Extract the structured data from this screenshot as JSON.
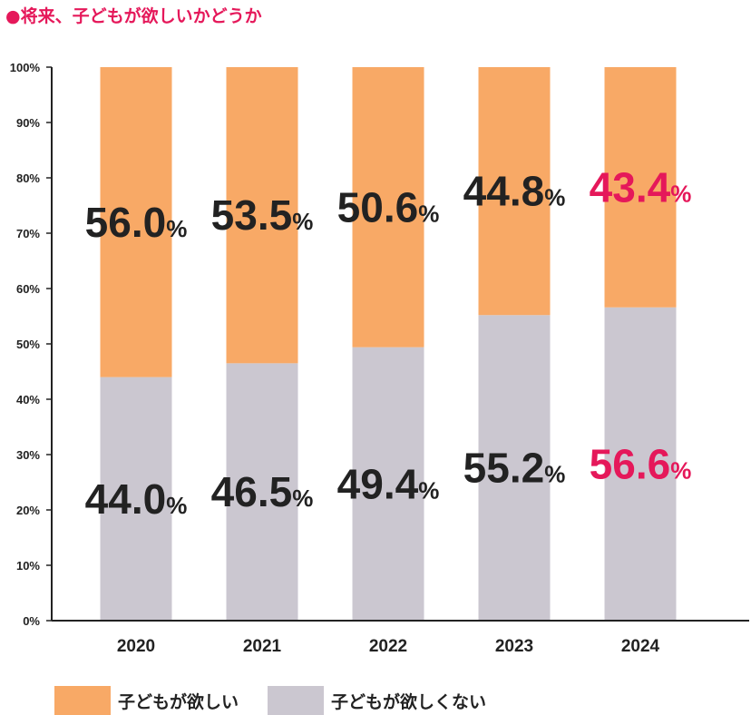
{
  "title": "●将来、子どもが欲しいかどうか",
  "colors": {
    "accent": "#e5185a",
    "want": "#f8a966",
    "not_want": "#cbc7d0",
    "text": "#222222"
  },
  "chart_data": {
    "type": "bar",
    "stacked": true,
    "title": "将来、子どもが欲しいかどうか",
    "categories": [
      "2020",
      "2021",
      "2022",
      "2023",
      "2024"
    ],
    "ylim": [
      0,
      100
    ],
    "yticks": [
      "0%",
      "10%",
      "20%",
      "30%",
      "40%",
      "50%",
      "60%",
      "70%",
      "80%",
      "90%",
      "100%"
    ],
    "series": [
      {
        "name": "子どもが欲しくない",
        "values": [
          44.0,
          46.5,
          49.4,
          55.2,
          56.6
        ],
        "labels": [
          "44.0",
          "46.5",
          "49.4",
          "55.2",
          "56.6"
        ],
        "highlight": [
          false,
          false,
          false,
          false,
          true
        ]
      },
      {
        "name": "子どもが欲しい",
        "values": [
          56.0,
          53.5,
          50.6,
          44.8,
          43.4
        ],
        "labels": [
          "56.0",
          "53.5",
          "50.6",
          "44.8",
          "43.4"
        ],
        "highlight": [
          false,
          false,
          false,
          false,
          true
        ]
      }
    ],
    "unit": "%",
    "legend": "bottom-left"
  },
  "legend": {
    "want_label": "子どもが欲しい",
    "not_want_label": "子どもが欲しくない"
  }
}
